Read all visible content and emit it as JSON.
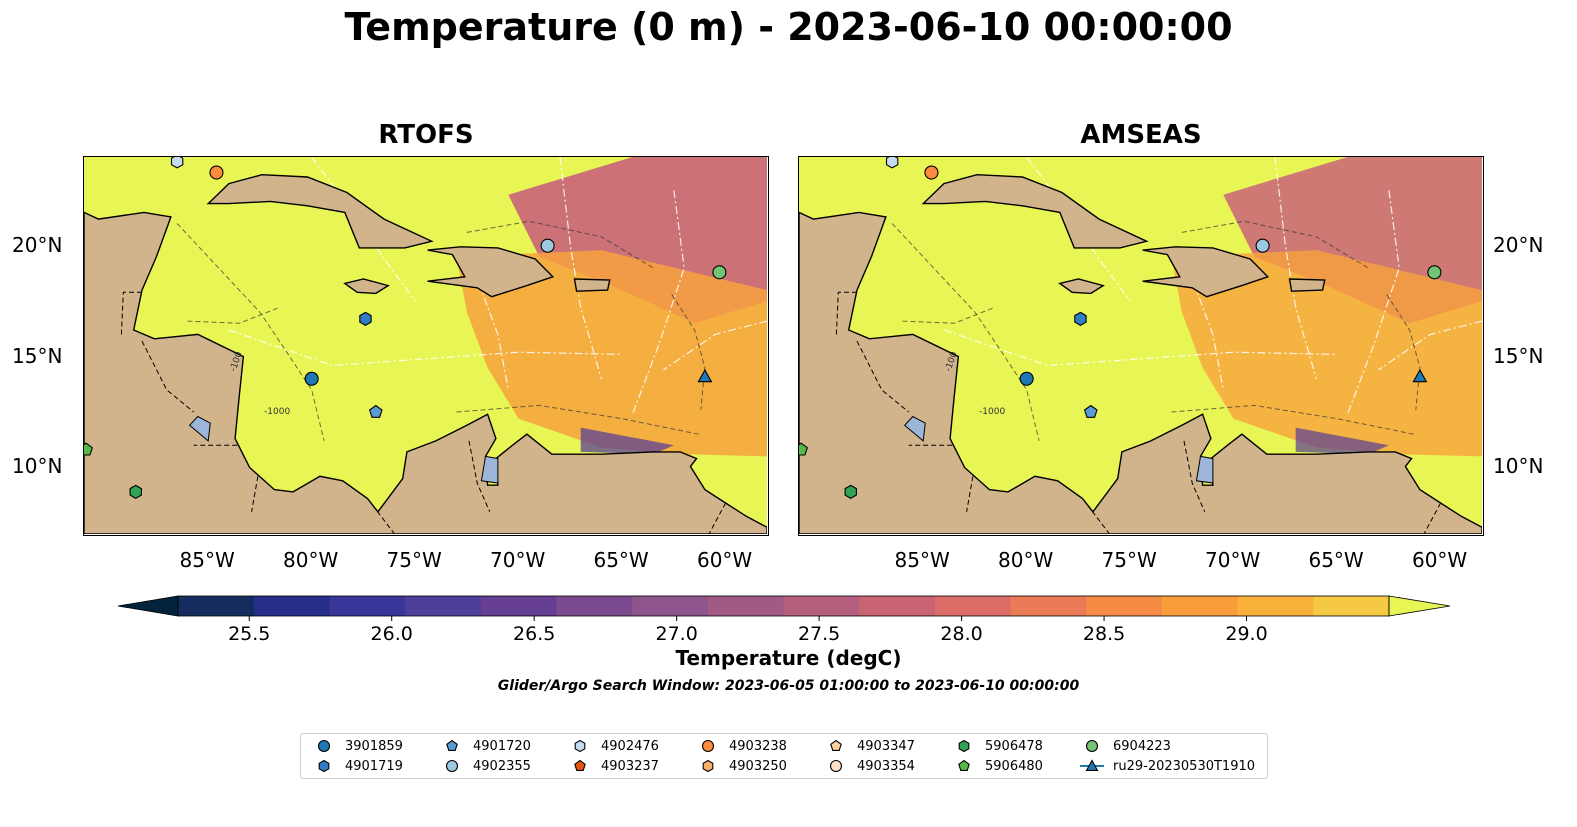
{
  "title": "Temperature (0 m) - 2023-06-10 00:00:00",
  "panels": [
    {
      "name": "RTOFS"
    },
    {
      "name": "AMSEAS"
    }
  ],
  "map": {
    "lon_range": [
      -91.0,
      -58.0
    ],
    "lat_range": [
      7.0,
      24.0
    ],
    "lon_ticks": [
      "85°W",
      "80°W",
      "75°W",
      "70°W",
      "65°W",
      "60°W"
    ],
    "lat_ticks": [
      "20°N",
      "15°N",
      "10°N"
    ],
    "contour_labels": [
      "-1000",
      "-100"
    ],
    "colors": {
      "land": "#d2b48c",
      "warm_water": "#e8f655",
      "mid_water": "#f7a23e",
      "cool_water": "#c9637a",
      "out_of_domain": "#92b2df",
      "lakes": "#9db5d8"
    }
  },
  "colorbar": {
    "label": "Temperature (degC)",
    "range": [
      25.25,
      29.5
    ],
    "ticks": [
      "25.5",
      "26.0",
      "26.5",
      "27.0",
      "27.5",
      "28.0",
      "28.5",
      "29.0"
    ],
    "colors": [
      "#03233a",
      "#142d5e",
      "#262e8a",
      "#3a3598",
      "#4e3f9b",
      "#663f93",
      "#7c4a8e",
      "#8e548c",
      "#a15a85",
      "#b55e7e",
      "#c96473",
      "#db6d66",
      "#ea7b57",
      "#f58c46",
      "#f99d3b",
      "#fab13a",
      "#f5c944",
      "#e8f655"
    ]
  },
  "search_window": "Glider/Argo Search Window: 2023-06-05 01:00:00 to 2023-06-10 00:00:00",
  "legend": [
    {
      "label": "3901859",
      "marker": "circle",
      "color": "#1f77b4"
    },
    {
      "label": "4901719",
      "marker": "hexagon",
      "color": "#2f7ec4"
    },
    {
      "label": "4901720",
      "marker": "pentagon",
      "color": "#5b9bd5"
    },
    {
      "label": "4902355",
      "marker": "circle",
      "color": "#9ecae1"
    },
    {
      "label": "4902476",
      "marker": "hexagon",
      "color": "#c6dbef"
    },
    {
      "label": "4903237",
      "marker": "pentagon",
      "color": "#e6550d"
    },
    {
      "label": "4903238",
      "marker": "circle",
      "color": "#fd8d3c"
    },
    {
      "label": "4903250",
      "marker": "hexagon",
      "color": "#fdae6b"
    },
    {
      "label": "4903347",
      "marker": "pentagon",
      "color": "#fdd0a2"
    },
    {
      "label": "4903354",
      "marker": "circle",
      "color": "#fde0c5"
    },
    {
      "label": "5906478",
      "marker": "hexagon",
      "color": "#31a354"
    },
    {
      "label": "5906480",
      "marker": "pentagon",
      "color": "#54b84a"
    },
    {
      "label": "6904223",
      "marker": "circle",
      "color": "#74c476"
    },
    {
      "label": "ru29-20230530T1910",
      "marker": "triangle-line",
      "color": "#1f77b4"
    }
  ],
  "platforms": [
    {
      "label": "3901859",
      "lon": -80.0,
      "lat": 14.0
    },
    {
      "label": "4901719",
      "lon": -77.4,
      "lat": 16.7
    },
    {
      "label": "4901720",
      "lon": -76.9,
      "lat": 12.5
    },
    {
      "label": "4902355",
      "lon": -68.6,
      "lat": 20.0
    },
    {
      "label": "4902476",
      "lon": -86.5,
      "lat": 23.8
    },
    {
      "label": "4903238",
      "lon": -84.6,
      "lat": 23.3
    },
    {
      "label": "5906478",
      "lon": -88.5,
      "lat": 8.9
    },
    {
      "label": "5906480",
      "lon": -90.9,
      "lat": 10.8
    },
    {
      "label": "6904223",
      "lon": -60.3,
      "lat": 18.8
    },
    {
      "label": "ru29-20230530T1910",
      "lon": -61.0,
      "lat": 14.1
    }
  ]
}
